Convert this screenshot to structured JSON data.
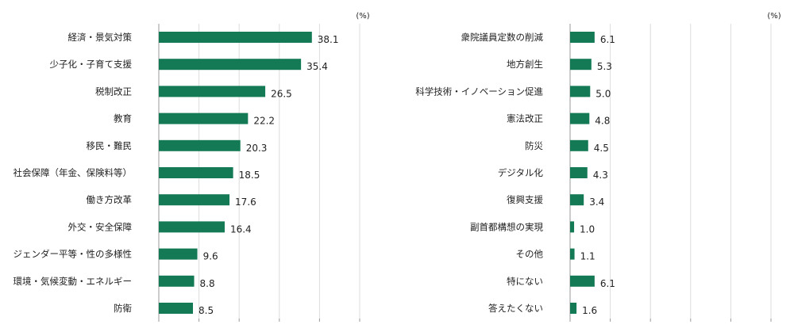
{
  "chart_data": [
    {
      "type": "bar",
      "orientation": "horizontal",
      "unit_label": "(%)",
      "xlim": [
        0,
        50
      ],
      "grid": true,
      "bar_color": "#137a55",
      "categories": [
        "経済・景気対策",
        "少子化・子育て支援",
        "税制改正",
        "教育",
        "移民・難民",
        "社会保障（年金、保険料等）",
        "働き方改革",
        "外交・安全保障",
        "ジェンダー平等・性の多様性",
        "環境・気候変動・エネルギー",
        "防衛"
      ],
      "values": [
        38.1,
        35.4,
        26.5,
        22.2,
        20.3,
        18.5,
        17.6,
        16.4,
        9.6,
        8.8,
        8.5
      ],
      "value_labels": [
        "38.1",
        "35.4",
        "26.5",
        "22.2",
        "20.3",
        "18.5",
        "17.6",
        "16.4",
        "9.6",
        "8.8",
        "8.5"
      ]
    },
    {
      "type": "bar",
      "orientation": "horizontal",
      "unit_label": "(%)",
      "xlim": [
        0,
        50
      ],
      "grid": true,
      "bar_color": "#137a55",
      "categories": [
        "衆院議員定数の削減",
        "地方創生",
        "科学技術・イノベーション促進",
        "憲法改正",
        "防災",
        "デジタル化",
        "復興支援",
        "副首都構想の実現",
        "その他",
        "特にない",
        "答えたくない"
      ],
      "values": [
        6.1,
        5.3,
        5.0,
        4.8,
        4.5,
        4.3,
        3.4,
        1.0,
        1.1,
        6.1,
        1.6
      ],
      "value_labels": [
        "6.1",
        "5.3",
        "5.0",
        "4.8",
        "4.5",
        "4.3",
        "3.4",
        "1.0",
        "1.1",
        "6.1",
        "1.6"
      ]
    }
  ]
}
